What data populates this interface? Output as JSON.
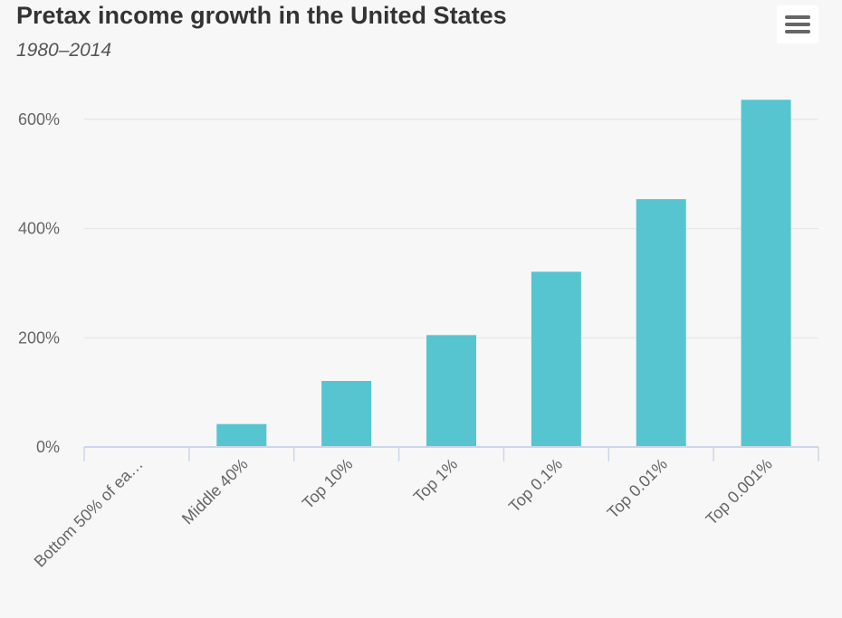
{
  "header": {
    "title": "Pretax income growth in the United States",
    "subtitle": "1980–2014",
    "menu_icon": "hamburger-menu-icon"
  },
  "chart_data": {
    "type": "bar",
    "title": "Pretax income growth in the United States",
    "subtitle": "1980–2014",
    "categories": [
      "Bottom 50% of ea…",
      "Middle 40%",
      "Top 10%",
      "Top 1%",
      "Top 0.1%",
      "Top 0.01%",
      "Top 0.001%"
    ],
    "series": [
      {
        "values": [
          1,
          42,
          121,
          205,
          321,
          454,
          636
        ],
        "color": "#56c5d0"
      }
    ],
    "yticks": [
      "0%",
      "200%",
      "400%",
      "600%"
    ],
    "ytick_values": [
      0,
      200,
      400,
      600
    ],
    "ylim": [
      0,
      600
    ],
    "xlabel": "",
    "ylabel": "",
    "grid": true,
    "legend": "none"
  }
}
